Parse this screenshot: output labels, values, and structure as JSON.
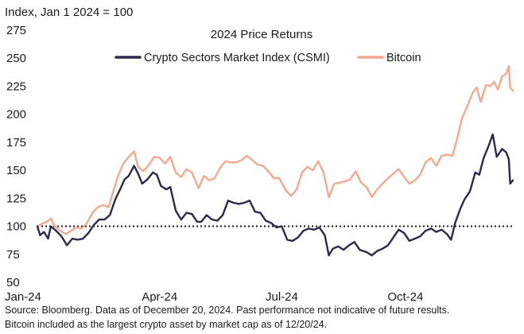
{
  "chart_data": {
    "type": "line",
    "title": "2024 Price Returns",
    "ylabel": "Index, Jan 1 2024 = 100",
    "xlabel": "",
    "ylim": [
      50,
      275
    ],
    "yticks": [
      50,
      75,
      100,
      125,
      150,
      175,
      200,
      225,
      250,
      275
    ],
    "xlim": [
      "2024-01-01",
      "2024-12-20"
    ],
    "xticks": [
      {
        "date": "2024-01-01",
        "label": "Jan-24"
      },
      {
        "date": "2024-04-01",
        "label": "Apr-24"
      },
      {
        "date": "2024-07-01",
        "label": "Jul-24"
      },
      {
        "date": "2024-10-01",
        "label": "Oct-24"
      }
    ],
    "reference_line": {
      "y": 100,
      "style": "dotted"
    },
    "grid": false,
    "legend_position": "top-center",
    "series": [
      {
        "name": "Crypto Sectors Market Index (CSMI)",
        "color": "#2c2a4a",
        "points": [
          [
            "2024-01-01",
            100
          ],
          [
            "2024-01-03",
            92
          ],
          [
            "2024-01-06",
            95
          ],
          [
            "2024-01-09",
            89
          ],
          [
            "2024-01-11",
            100
          ],
          [
            "2024-01-15",
            96
          ],
          [
            "2024-01-19",
            91
          ],
          [
            "2024-01-23",
            83
          ],
          [
            "2024-01-27",
            89
          ],
          [
            "2024-01-31",
            88
          ],
          [
            "2024-02-04",
            89
          ],
          [
            "2024-02-08",
            94
          ],
          [
            "2024-02-12",
            101
          ],
          [
            "2024-02-16",
            106
          ],
          [
            "2024-02-20",
            106
          ],
          [
            "2024-02-24",
            110
          ],
          [
            "2024-02-28",
            124
          ],
          [
            "2024-03-03",
            134
          ],
          [
            "2024-03-06",
            142
          ],
          [
            "2024-03-09",
            145
          ],
          [
            "2024-03-13",
            154
          ],
          [
            "2024-03-16",
            147
          ],
          [
            "2024-03-19",
            138
          ],
          [
            "2024-03-23",
            142
          ],
          [
            "2024-03-27",
            148
          ],
          [
            "2024-03-30",
            146
          ],
          [
            "2024-04-02",
            136
          ],
          [
            "2024-04-06",
            133
          ],
          [
            "2024-04-09",
            135
          ],
          [
            "2024-04-13",
            114
          ],
          [
            "2024-04-17",
            106
          ],
          [
            "2024-04-21",
            112
          ],
          [
            "2024-04-25",
            111
          ],
          [
            "2024-04-29",
            104
          ],
          [
            "2024-05-02",
            104
          ],
          [
            "2024-05-06",
            110
          ],
          [
            "2024-05-10",
            106
          ],
          [
            "2024-05-14",
            105
          ],
          [
            "2024-05-18",
            110
          ],
          [
            "2024-05-22",
            123
          ],
          [
            "2024-05-26",
            121
          ],
          [
            "2024-05-30",
            120
          ],
          [
            "2024-06-03",
            121
          ],
          [
            "2024-06-07",
            123
          ],
          [
            "2024-06-11",
            113
          ],
          [
            "2024-06-15",
            112
          ],
          [
            "2024-06-19",
            105
          ],
          [
            "2024-06-23",
            103
          ],
          [
            "2024-06-27",
            99
          ],
          [
            "2024-07-01",
            100
          ],
          [
            "2024-07-05",
            88
          ],
          [
            "2024-07-09",
            87
          ],
          [
            "2024-07-13",
            90
          ],
          [
            "2024-07-17",
            96
          ],
          [
            "2024-07-21",
            98
          ],
          [
            "2024-07-25",
            97
          ],
          [
            "2024-07-29",
            99
          ],
          [
            "2024-08-02",
            92
          ],
          [
            "2024-08-05",
            74
          ],
          [
            "2024-08-08",
            80
          ],
          [
            "2024-08-12",
            82
          ],
          [
            "2024-08-16",
            79
          ],
          [
            "2024-08-20",
            83
          ],
          [
            "2024-08-24",
            86
          ],
          [
            "2024-08-28",
            79
          ],
          [
            "2024-09-02",
            77
          ],
          [
            "2024-09-06",
            74
          ],
          [
            "2024-09-10",
            78
          ],
          [
            "2024-09-14",
            80
          ],
          [
            "2024-09-18",
            83
          ],
          [
            "2024-09-22",
            90
          ],
          [
            "2024-09-26",
            97
          ],
          [
            "2024-09-30",
            94
          ],
          [
            "2024-10-04",
            87
          ],
          [
            "2024-10-08",
            89
          ],
          [
            "2024-10-12",
            91
          ],
          [
            "2024-10-16",
            96
          ],
          [
            "2024-10-20",
            98
          ],
          [
            "2024-10-24",
            95
          ],
          [
            "2024-10-28",
            97
          ],
          [
            "2024-11-01",
            93
          ],
          [
            "2024-11-04",
            88
          ],
          [
            "2024-11-07",
            103
          ],
          [
            "2024-11-11",
            116
          ],
          [
            "2024-11-14",
            124
          ],
          [
            "2024-11-18",
            131
          ],
          [
            "2024-11-22",
            148
          ],
          [
            "2024-11-25",
            146
          ],
          [
            "2024-11-28",
            160
          ],
          [
            "2024-12-02",
            172
          ],
          [
            "2024-12-05",
            182
          ],
          [
            "2024-12-08",
            162
          ],
          [
            "2024-12-12",
            169
          ],
          [
            "2024-12-15",
            166
          ],
          [
            "2024-12-17",
            160
          ],
          [
            "2024-12-18",
            138
          ],
          [
            "2024-12-20",
            141
          ]
        ]
      },
      {
        "name": "Bitcoin",
        "color": "#f4a98e",
        "points": [
          [
            "2024-01-01",
            100
          ],
          [
            "2024-01-04",
            102
          ],
          [
            "2024-01-08",
            104
          ],
          [
            "2024-01-11",
            107
          ],
          [
            "2024-01-14",
            100
          ],
          [
            "2024-01-18",
            96
          ],
          [
            "2024-01-22",
            93
          ],
          [
            "2024-01-26",
            96
          ],
          [
            "2024-01-30",
            99
          ],
          [
            "2024-02-03",
            98
          ],
          [
            "2024-02-07",
            103
          ],
          [
            "2024-02-11",
            112
          ],
          [
            "2024-02-15",
            117
          ],
          [
            "2024-02-19",
            119
          ],
          [
            "2024-02-23",
            117
          ],
          [
            "2024-02-27",
            133
          ],
          [
            "2024-03-01",
            145
          ],
          [
            "2024-03-05",
            156
          ],
          [
            "2024-03-09",
            162
          ],
          [
            "2024-03-13",
            167
          ],
          [
            "2024-03-16",
            153
          ],
          [
            "2024-03-20",
            149
          ],
          [
            "2024-03-24",
            155
          ],
          [
            "2024-03-28",
            162
          ],
          [
            "2024-04-01",
            161
          ],
          [
            "2024-04-05",
            156
          ],
          [
            "2024-04-09",
            162
          ],
          [
            "2024-04-13",
            148
          ],
          [
            "2024-04-17",
            144
          ],
          [
            "2024-04-21",
            151
          ],
          [
            "2024-04-25",
            148
          ],
          [
            "2024-04-30",
            134
          ],
          [
            "2024-05-04",
            145
          ],
          [
            "2024-05-08",
            141
          ],
          [
            "2024-05-12",
            143
          ],
          [
            "2024-05-16",
            152
          ],
          [
            "2024-05-20",
            158
          ],
          [
            "2024-05-24",
            157
          ],
          [
            "2024-05-28",
            157
          ],
          [
            "2024-06-01",
            159
          ],
          [
            "2024-06-05",
            163
          ],
          [
            "2024-06-09",
            159
          ],
          [
            "2024-06-13",
            155
          ],
          [
            "2024-06-17",
            154
          ],
          [
            "2024-06-21",
            149
          ],
          [
            "2024-06-25",
            143
          ],
          [
            "2024-06-29",
            143
          ],
          [
            "2024-07-04",
            132
          ],
          [
            "2024-07-08",
            127
          ],
          [
            "2024-07-12",
            133
          ],
          [
            "2024-07-16",
            148
          ],
          [
            "2024-07-20",
            153
          ],
          [
            "2024-07-24",
            150
          ],
          [
            "2024-07-28",
            158
          ],
          [
            "2024-08-01",
            148
          ],
          [
            "2024-08-05",
            126
          ],
          [
            "2024-08-09",
            138
          ],
          [
            "2024-08-13",
            139
          ],
          [
            "2024-08-17",
            140
          ],
          [
            "2024-08-21",
            142
          ],
          [
            "2024-08-25",
            149
          ],
          [
            "2024-08-29",
            139
          ],
          [
            "2024-09-02",
            135
          ],
          [
            "2024-09-06",
            126
          ],
          [
            "2024-09-10",
            133
          ],
          [
            "2024-09-14",
            138
          ],
          [
            "2024-09-18",
            143
          ],
          [
            "2024-09-22",
            147
          ],
          [
            "2024-09-26",
            151
          ],
          [
            "2024-09-30",
            144
          ],
          [
            "2024-10-04",
            138
          ],
          [
            "2024-10-08",
            141
          ],
          [
            "2024-10-12",
            146
          ],
          [
            "2024-10-16",
            157
          ],
          [
            "2024-10-20",
            161
          ],
          [
            "2024-10-24",
            154
          ],
          [
            "2024-10-28",
            163
          ],
          [
            "2024-11-01",
            164
          ],
          [
            "2024-11-05",
            163
          ],
          [
            "2024-11-08",
            176
          ],
          [
            "2024-11-12",
            196
          ],
          [
            "2024-11-16",
            207
          ],
          [
            "2024-11-20",
            219
          ],
          [
            "2024-11-23",
            224
          ],
          [
            "2024-11-26",
            211
          ],
          [
            "2024-11-30",
            226
          ],
          [
            "2024-12-03",
            225
          ],
          [
            "2024-12-06",
            229
          ],
          [
            "2024-12-09",
            222
          ],
          [
            "2024-12-12",
            234
          ],
          [
            "2024-12-15",
            236
          ],
          [
            "2024-12-17",
            243
          ],
          [
            "2024-12-18",
            224
          ],
          [
            "2024-12-20",
            221
          ]
        ]
      }
    ]
  },
  "footnotes": [
    "Source: Bloomberg. Data as of December 20, 2024. Past performance not indicative of future results.",
    "Bitcoin included as the largest crypto asset by market cap as of 12/20/24."
  ]
}
